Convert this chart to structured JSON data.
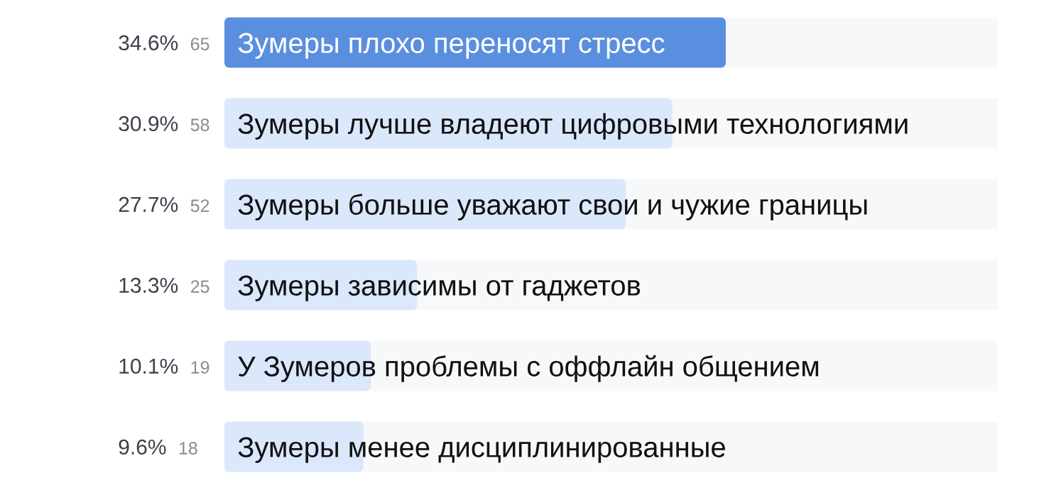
{
  "chart_data": {
    "type": "bar",
    "orientation": "horizontal",
    "categories": [
      "Зумеры плохо переносят стресс",
      "Зумеры лучше владеют цифровыми технологиями",
      "Зумеры больше уважают свои и чужие границы",
      "Зумеры зависимы от гаджетов",
      "У Зумеров проблемы с оффлайн общением",
      "Зумеры менее дисциплинированные"
    ],
    "values": [
      34.6,
      30.9,
      27.7,
      13.3,
      10.1,
      9.6
    ],
    "colors": [
      "#5a8fdf",
      "#dbe7fb",
      "#dbe7fb",
      "#dbe7fb",
      "#dbe7fb",
      "#dbe7fb"
    ],
    "value_labels": [
      "34.6%",
      "30.9%",
      "27.7%",
      "13.3%",
      "10.1%",
      "9.6%"
    ],
    "annotations": [
      "65",
      "58",
      "52",
      "25",
      "19",
      "18"
    ],
    "tick_labels": "y"
  }
}
